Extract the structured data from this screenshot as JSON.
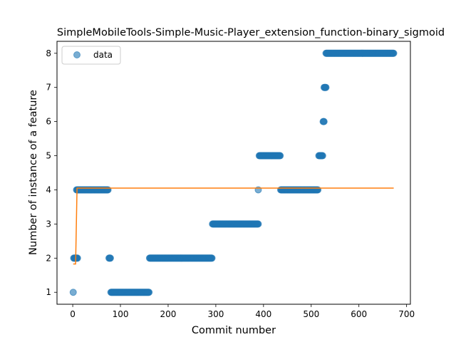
{
  "chart_data": {
    "type": "scatter",
    "title": "SimpleMobileTools-Simple-Music-Player_extension_function-binary_sigmoid",
    "xlabel": "Commit number",
    "ylabel": "Number of instance of a feature",
    "xlim": [
      -33,
      708
    ],
    "ylim": [
      0.65,
      8.35
    ],
    "xticks": [
      0,
      100,
      200,
      300,
      400,
      500,
      600,
      700
    ],
    "yticks": [
      1,
      2,
      3,
      4,
      5,
      6,
      7,
      8
    ],
    "grid": false,
    "legend": {
      "placement": "top-left",
      "entries": [
        "data"
      ]
    },
    "colors": {
      "data": "#1f77b4",
      "fit": "#ff7f0e"
    },
    "series": [
      {
        "name": "data",
        "kind": "scatter",
        "segments": [
          {
            "x_start": 1,
            "x_end": 1,
            "y": 1
          },
          {
            "x_start": 2,
            "x_end": 10,
            "y": 2
          },
          {
            "x_start": 8,
            "x_end": 74,
            "y": 4
          },
          {
            "x_start": 76,
            "x_end": 79,
            "y": 2
          },
          {
            "x_start": 80,
            "x_end": 160,
            "y": 1
          },
          {
            "x_start": 161,
            "x_end": 292,
            "y": 2
          },
          {
            "x_start": 293,
            "x_end": 389,
            "y": 3
          },
          {
            "x_start": 389,
            "x_end": 389,
            "y": 4
          },
          {
            "x_start": 391,
            "x_end": 435,
            "y": 5
          },
          {
            "x_start": 436,
            "x_end": 514,
            "y": 4
          },
          {
            "x_start": 516,
            "x_end": 524,
            "y": 5
          },
          {
            "x_start": 525,
            "x_end": 527,
            "y": 6
          },
          {
            "x_start": 527,
            "x_end": 531,
            "y": 7
          },
          {
            "x_start": 531,
            "x_end": 673,
            "y": 8
          }
        ]
      },
      {
        "name": "fit",
        "kind": "line",
        "x": [
          1,
          6,
          9,
          673
        ],
        "y": [
          1.83,
          1.83,
          4.05,
          4.05
        ]
      }
    ]
  }
}
